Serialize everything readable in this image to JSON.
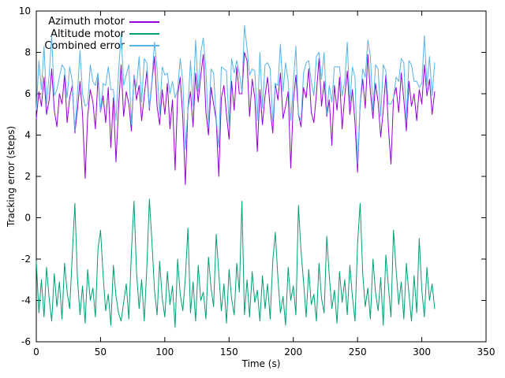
{
  "figure": {
    "background": "#ffffff",
    "border_color": "#000000",
    "tick_color": "#000000"
  },
  "axes": {
    "xlabel": "Time (s)",
    "ylabel": "Tracking error (steps)",
    "x_min": 0,
    "x_max": 350,
    "y_min": -6,
    "y_max": 10,
    "x_ticks": [
      0,
      50,
      100,
      150,
      200,
      250,
      300,
      350
    ],
    "y_ticks": [
      -6,
      -4,
      -2,
      0,
      2,
      4,
      6,
      8,
      10
    ]
  },
  "legend": {
    "position": "top-left",
    "entries": [
      {
        "label": "Azimuth motor",
        "color": "#9400d3"
      },
      {
        "label": "Altitude motor",
        "color": "#009e73"
      },
      {
        "label": "Combined error",
        "color": "#56b4e9"
      }
    ]
  },
  "chart_data": {
    "type": "line",
    "title": "",
    "xlabel": "Time (s)",
    "ylabel": "Tracking error (steps)",
    "xlim": [
      0,
      350
    ],
    "ylim": [
      -6,
      10
    ],
    "grid": false,
    "legend_position": "top-left",
    "x_start": 0,
    "x_step": 2,
    "n_points": 156,
    "series": [
      {
        "name": "Azimuth motor",
        "color": "#9400d3",
        "values": [
          4.8,
          6.1,
          5.4,
          6.8,
          5.0,
          5.7,
          7.2,
          5.2,
          4.4,
          6.0,
          5.5,
          6.9,
          4.6,
          5.8,
          6.4,
          4.1,
          5.2,
          6.6,
          5.0,
          1.9,
          4.9,
          6.2,
          5.6,
          4.3,
          6.8,
          5.1,
          5.9,
          4.6,
          6.3,
          3.4,
          5.8,
          2.7,
          5.3,
          7.4,
          4.9,
          6.1,
          5.5,
          4.2,
          6.9,
          5.7,
          6.4,
          4.7,
          5.9,
          7.1,
          5.2,
          6.6,
          7.8,
          5.4,
          4.5,
          6.2,
          5.0,
          6.5,
          4.3,
          5.7,
          2.3,
          5.9,
          6.8,
          4.8,
          1.6,
          5.3,
          6.1,
          4.4,
          7.0,
          5.6,
          6.9,
          7.9,
          5.1,
          4.0,
          6.3,
          5.5,
          4.7,
          2.0,
          5.8,
          6.4,
          5.0,
          3.8,
          6.6,
          5.2,
          7.3,
          6.0,
          6.0,
          8.0,
          7.6,
          4.9,
          6.7,
          5.8,
          3.2,
          6.2,
          4.5,
          5.9,
          6.8,
          5.3,
          4.1,
          6.5,
          5.7,
          7.0,
          4.8,
          5.4,
          6.1,
          2.4,
          5.6,
          6.9,
          5.0,
          4.4,
          6.3,
          5.8,
          7.2,
          5.1,
          4.6,
          6.0,
          7.7,
          5.4,
          6.6,
          4.9,
          5.7,
          3.5,
          6.4,
          5.2,
          6.8,
          4.3,
          5.9,
          7.1,
          5.0,
          6.2,
          4.6,
          2.2,
          5.5,
          6.7,
          5.3,
          7.9,
          6.1,
          4.8,
          6.5,
          5.6,
          3.9,
          5.2,
          6.9,
          4.4,
          2.6,
          5.8,
          6.3,
          5.1,
          7.0,
          5.7,
          4.2,
          6.6,
          5.4,
          6.0,
          4.7,
          6.2,
          5.5,
          7.4,
          5.9,
          6.7,
          5.0,
          6.1
        ]
      },
      {
        "name": "Altitude motor",
        "color": "#009e73",
        "values": [
          -2.1,
          -4.6,
          -3.0,
          -4.8,
          -2.4,
          -3.9,
          -5.0,
          -2.7,
          -4.3,
          -3.1,
          -4.9,
          -2.2,
          -3.6,
          -4.4,
          -1.8,
          0.7,
          -2.9,
          -4.7,
          -3.3,
          -5.1,
          -2.5,
          -4.0,
          -3.4,
          -4.8,
          -1.5,
          -0.6,
          -2.8,
          -4.5,
          -3.7,
          -5.2,
          -2.3,
          -3.8,
          -4.6,
          -5.0,
          -4.1,
          -3.2,
          -4.9,
          -1.7,
          0.8,
          -2.6,
          -4.4,
          -3.0,
          -5.0,
          -2.4,
          0.9,
          -1.2,
          -3.5,
          -4.7,
          -2.1,
          -3.9,
          -4.8,
          -2.6,
          -4.2,
          -3.3,
          -5.3,
          -2.0,
          -3.7,
          -4.5,
          -2.9,
          -0.5,
          -4.6,
          -3.1,
          -5.0,
          -2.3,
          -4.0,
          -3.6,
          -4.9,
          -1.9,
          -3.4,
          -4.3,
          -0.8,
          -2.7,
          -4.5,
          -3.2,
          -5.1,
          -2.5,
          -3.9,
          -4.7,
          -2.2,
          -3.6,
          0.8,
          -4.7,
          -3.0,
          -4.8,
          -2.6,
          -4.1,
          -3.5,
          -5.0,
          -2.8,
          -4.4,
          -3.2,
          -4.9,
          -2.1,
          -0.7,
          -2.9,
          -4.6,
          -3.8,
          -5.2,
          -2.4,
          -4.0,
          -3.3,
          -4.7,
          0.6,
          -1.6,
          -3.1,
          -4.8,
          -2.5,
          -4.2,
          -3.7,
          -5.0,
          -2.2,
          -3.9,
          -4.6,
          -0.9,
          -2.8,
          -4.4,
          -3.5,
          -5.1,
          -2.6,
          -4.1,
          -3.0,
          -4.7,
          -2.3,
          -3.8,
          -5.0,
          -1.3,
          0.7,
          -2.7,
          -4.3,
          -3.4,
          -4.9,
          -2.0,
          -3.6,
          -4.5,
          -2.9,
          -5.2,
          -1.8,
          -3.3,
          -4.8,
          -0.6,
          -2.5,
          -4.2,
          -3.1,
          -4.9,
          -2.2,
          -3.7,
          -5.0,
          -2.8,
          -4.6,
          -1.0,
          -3.5,
          -4.8,
          -2.4,
          -4.0,
          -3.2,
          -4.4
        ]
      },
      {
        "name": "Combined error",
        "color": "#56b4e9",
        "values": [
          5.2,
          7.6,
          6.2,
          8.3,
          5.5,
          6.9,
          8.8,
          5.9,
          6.2,
          6.8,
          7.4,
          7.2,
          5.8,
          7.3,
          6.6,
          4.2,
          6.0,
          8.1,
          6.0,
          5.4,
          5.5,
          7.4,
          6.6,
          6.4,
          7.0,
          5.1,
          6.5,
          6.4,
          7.3,
          6.2,
          6.2,
          4.7,
          7.0,
          8.9,
          6.4,
          6.9,
          7.4,
          4.5,
          6.9,
          6.3,
          7.8,
          5.6,
          7.7,
          7.5,
          5.3,
          6.7,
          8.5,
          7.2,
          5.0,
          7.3,
          6.9,
          7.0,
          6.0,
          6.6,
          5.8,
          6.2,
          7.7,
          6.6,
          3.3,
          5.3,
          7.6,
          5.4,
          8.6,
          6.1,
          8.0,
          8.7,
          7.1,
          4.4,
          7.2,
          7.0,
          4.8,
          3.4,
          7.3,
          7.2,
          7.1,
          4.5,
          7.7,
          7.0,
          7.6,
          7.0,
          6.1,
          9.3,
          8.2,
          6.9,
          7.2,
          7.1,
          4.7,
          8.0,
          5.3,
          7.4,
          7.5,
          7.2,
          4.6,
          6.5,
          6.4,
          8.4,
          6.1,
          7.5,
          6.6,
          4.7,
          6.5,
          8.3,
          5.0,
          4.7,
          7.0,
          7.5,
          7.6,
          6.6,
          5.9,
          7.8,
          8.0,
          6.7,
          8.0,
          5.0,
          6.4,
          5.6,
          7.3,
          7.3,
          7.3,
          5.9,
          6.6,
          8.5,
          5.5,
          7.3,
          6.8,
          2.6,
          5.5,
          7.2,
          6.8,
          8.6,
          7.8,
          5.2,
          7.4,
          7.2,
          4.9,
          7.4,
          7.1,
          5.5,
          5.5,
          5.8,
          6.8,
          6.6,
          7.7,
          7.5,
          4.7,
          7.6,
          7.4,
          6.6,
          6.6,
          6.3,
          6.5,
          8.8,
          6.4,
          7.8,
          5.9,
          7.5
        ]
      }
    ]
  }
}
